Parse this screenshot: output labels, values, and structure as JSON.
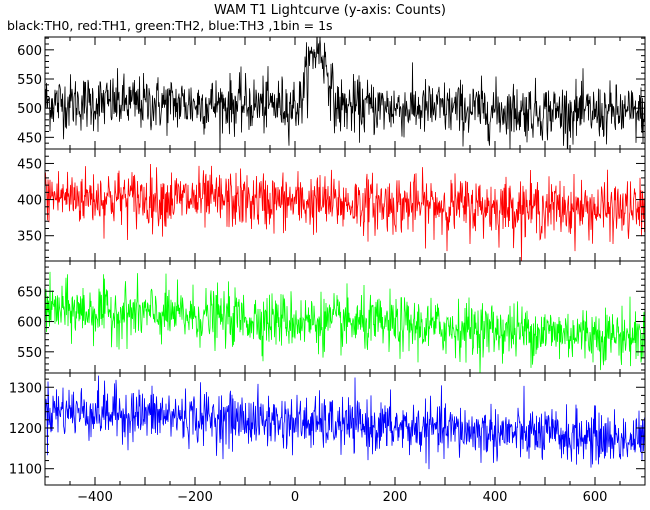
{
  "chart_data": {
    "type": "line",
    "title": "WAM T1 Lightcurve (y-axis: Counts)",
    "subtitle": "black:TH0, red:TH1, green:TH2, blue:TH3 ,1bin = 1s",
    "xlabel": "",
    "ylabel": "",
    "xlim": [
      -500,
      700
    ],
    "x_ticks": [
      -400,
      -200,
      0,
      200,
      400,
      600
    ],
    "x_minor_step": 50,
    "bin_seconds": 1,
    "panels": [
      {
        "name": "TH0",
        "color": "#000000",
        "ylim": [
          430,
          622
        ],
        "y_ticks": [
          450,
          500,
          550,
          600
        ],
        "y_minor_step": 10,
        "baseline": [
          [
            -500,
            510
          ],
          [
            0,
            505
          ],
          [
            700,
            490
          ]
        ],
        "noise_sigma": 24,
        "burst": {
          "x_range": [
            10,
            80
          ],
          "peak": 600
        }
      },
      {
        "name": "TH1",
        "color": "#ff0000",
        "ylim": [
          315,
          470
        ],
        "y_ticks": [
          350,
          400,
          450
        ],
        "y_minor_step": 10,
        "baseline": [
          [
            -500,
            405
          ],
          [
            700,
            385
          ]
        ],
        "noise_sigma": 20
      },
      {
        "name": "TH2",
        "color": "#00ff00",
        "ylim": [
          515,
          700
        ],
        "y_ticks": [
          550,
          600,
          650
        ],
        "y_minor_step": 10,
        "baseline": [
          [
            -500,
            620
          ],
          [
            700,
            575
          ]
        ],
        "noise_sigma": 23
      },
      {
        "name": "TH3",
        "color": "#0000ff",
        "ylim": [
          1060,
          1335
        ],
        "y_ticks": [
          1100,
          1200,
          1300
        ],
        "y_minor_step": 20,
        "baseline": [
          [
            -500,
            1245
          ],
          [
            700,
            1170
          ]
        ],
        "noise_sigma": 33
      }
    ]
  }
}
